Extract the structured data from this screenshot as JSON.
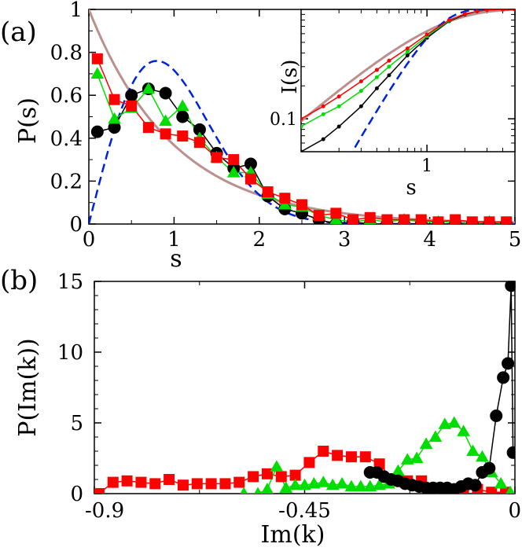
{
  "chart_data": [
    {
      "type": "line",
      "panel_label": "(a)",
      "xlabel": "s",
      "ylabel": "P(s)",
      "xlim": [
        0,
        5
      ],
      "ylim": [
        0,
        1
      ],
      "xticks": [
        "0",
        "1",
        "2",
        "3",
        "4",
        "5"
      ],
      "yticks": [
        "0",
        "0.2",
        "0.4",
        "0.6",
        "0.8",
        "1"
      ],
      "series": [
        {
          "name": "black-circles",
          "color": "#000000",
          "marker": "circle",
          "x": [
            0.1,
            0.3,
            0.5,
            0.7,
            0.9,
            1.1,
            1.3,
            1.5,
            1.7,
            1.9,
            2.1,
            2.3,
            2.5,
            2.7,
            2.9,
            3.1,
            3.3,
            3.5,
            3.7,
            3.9,
            4.1,
            4.3,
            4.5,
            4.7,
            4.9
          ],
          "y": [
            0.43,
            0.45,
            0.6,
            0.63,
            0.61,
            0.5,
            0.44,
            0.33,
            0.26,
            0.28,
            0.13,
            0.07,
            0.05,
            0.02,
            0.0,
            0.01,
            0.0,
            0.0,
            0.0,
            0.0,
            0.0,
            0.0,
            0.0,
            0.0,
            0.0
          ]
        },
        {
          "name": "green-triangles",
          "color": "#00dd00",
          "marker": "triangle",
          "x": [
            0.1,
            0.3,
            0.5,
            0.7,
            0.9,
            1.1,
            1.3,
            1.5,
            1.7,
            1.9,
            2.1,
            2.3,
            2.5,
            2.7,
            2.9,
            3.1,
            3.3,
            3.5,
            3.7,
            3.9,
            4.1,
            4.3,
            4.5,
            4.7,
            4.9
          ],
          "y": [
            0.7,
            0.49,
            0.54,
            0.63,
            0.48,
            0.55,
            0.4,
            0.31,
            0.24,
            0.24,
            0.14,
            0.09,
            0.08,
            0.04,
            0.02,
            0.01,
            0.02,
            0.01,
            0.02,
            0.01,
            0.01,
            0.01,
            0.0,
            0.01,
            0.0
          ]
        },
        {
          "name": "red-squares",
          "color": "#ff0000",
          "marker": "square",
          "x": [
            0.1,
            0.3,
            0.5,
            0.7,
            0.9,
            1.1,
            1.3,
            1.5,
            1.7,
            1.9,
            2.1,
            2.3,
            2.5,
            2.7,
            2.9,
            3.1,
            3.3,
            3.5,
            3.7,
            3.9,
            4.1,
            4.3,
            4.5,
            4.7,
            4.9
          ],
          "y": [
            0.77,
            0.58,
            0.55,
            0.45,
            0.42,
            0.41,
            0.38,
            0.31,
            0.3,
            0.21,
            0.15,
            0.12,
            0.09,
            0.04,
            0.05,
            0.02,
            0.03,
            0.02,
            0.02,
            0.02,
            0.01,
            0.02,
            0.01,
            0.01,
            0.01
          ]
        },
        {
          "name": "poisson",
          "color": "#bc8f8f",
          "style": "solid-thick",
          "formula": "exp(-s)"
        },
        {
          "name": "wigner-goe",
          "color": "#0022dd",
          "style": "dashed",
          "formula": "(pi/2) s exp(-pi s^2 / 4)"
        }
      ],
      "inset": {
        "xlabel": "s",
        "ylabel": "I(s)",
        "xscale": "log",
        "yscale": "log",
        "xlim": [
          0.1,
          5
        ],
        "ylim": [
          0.05,
          1
        ],
        "xticks": [
          "1"
        ],
        "yticks": [
          "0.1"
        ],
        "series": [
          {
            "name": "black",
            "color": "#000000",
            "x": [
              0.1,
              0.15,
              0.2,
              0.3,
              0.4,
              0.5,
              0.7,
              1.0,
              1.5,
              2.0,
              2.5,
              3.0,
              4.0,
              5.0
            ],
            "y": [
              0.05,
              0.065,
              0.085,
              0.13,
              0.19,
              0.25,
              0.38,
              0.55,
              0.78,
              0.9,
              0.96,
              0.99,
              1.0,
              1.0
            ]
          },
          {
            "name": "green",
            "color": "#00dd00",
            "x": [
              0.1,
              0.15,
              0.2,
              0.3,
              0.4,
              0.5,
              0.7,
              1.0,
              1.5,
              2.0,
              2.5,
              3.0,
              4.0,
              5.0
            ],
            "y": [
              0.085,
              0.11,
              0.13,
              0.18,
              0.24,
              0.3,
              0.41,
              0.57,
              0.79,
              0.91,
              0.96,
              0.99,
              1.0,
              1.0
            ]
          },
          {
            "name": "red",
            "color": "#ff0000",
            "x": [
              0.1,
              0.15,
              0.2,
              0.3,
              0.4,
              0.5,
              0.7,
              1.0,
              1.5,
              2.0,
              2.5,
              3.0,
              4.0,
              5.0
            ],
            "y": [
              0.1,
              0.13,
              0.16,
              0.22,
              0.28,
              0.34,
              0.44,
              0.59,
              0.8,
              0.91,
              0.96,
              0.99,
              1.0,
              1.0
            ]
          },
          {
            "name": "poisson-cumulative",
            "color": "#bc8f8f",
            "formula": "1 - exp(-s)"
          },
          {
            "name": "wigner-cumulative",
            "color": "#0022dd",
            "formula": "1 - exp(-pi s^2 / 4)"
          }
        ]
      }
    },
    {
      "type": "line",
      "panel_label": "(b)",
      "xlabel": "Im(k)",
      "ylabel": "P(Im(k))",
      "xlim": [
        -0.9,
        0
      ],
      "ylim": [
        0,
        15
      ],
      "xticks": [
        "-0.9",
        "-0.45",
        "0"
      ],
      "yticks": [
        "0",
        "5",
        "10",
        "15"
      ],
      "series": [
        {
          "name": "red-squares",
          "color": "#ff0000",
          "marker": "square",
          "x": [
            -0.89,
            -0.86,
            -0.83,
            -0.8,
            -0.77,
            -0.74,
            -0.71,
            -0.68,
            -0.65,
            -0.62,
            -0.59,
            -0.56,
            -0.53,
            -0.5,
            -0.47,
            -0.44,
            -0.41,
            -0.38,
            -0.35,
            -0.32,
            -0.29,
            -0.26,
            -0.23,
            -0.2,
            -0.17,
            -0.14,
            -0.11,
            -0.08,
            -0.05,
            -0.02
          ],
          "y": [
            0.0,
            0.8,
            0.9,
            0.8,
            0.7,
            1.0,
            0.6,
            0.7,
            0.7,
            0.7,
            0.8,
            1.2,
            1.4,
            1.2,
            1.3,
            2.2,
            3.0,
            2.7,
            2.6,
            2.6,
            2.1,
            0.9,
            0.9,
            0.9,
            0.4,
            0.3,
            0.3,
            0.3,
            0.1,
            0.1
          ]
        },
        {
          "name": "green-triangles",
          "color": "#00dd00",
          "marker": "triangle",
          "x": [
            -0.58,
            -0.55,
            -0.53,
            -0.51,
            -0.49,
            -0.47,
            -0.45,
            -0.43,
            -0.41,
            -0.39,
            -0.37,
            -0.35,
            -0.33,
            -0.31,
            -0.29,
            -0.27,
            -0.25,
            -0.23,
            -0.21,
            -0.19,
            -0.17,
            -0.15,
            -0.13,
            -0.11,
            -0.09,
            -0.07,
            -0.05,
            -0.03,
            -0.01
          ],
          "y": [
            0.0,
            0.0,
            0.3,
            1.9,
            0.4,
            0.6,
            0.6,
            0.7,
            0.8,
            0.6,
            0.7,
            0.5,
            0.5,
            0.5,
            0.6,
            0.7,
            1.6,
            2.4,
            2.5,
            3.5,
            4.0,
            4.9,
            5.0,
            4.4,
            3.0,
            2.6,
            1.5,
            0.7,
            0.1
          ]
        },
        {
          "name": "black-circles",
          "color": "#000000",
          "marker": "circle",
          "x": [
            -0.31,
            -0.295,
            -0.28,
            -0.265,
            -0.25,
            -0.235,
            -0.22,
            -0.205,
            -0.19,
            -0.175,
            -0.16,
            -0.145,
            -0.13,
            -0.115,
            -0.1,
            -0.085,
            -0.07,
            -0.055,
            -0.04,
            -0.025,
            -0.015,
            -0.008,
            -0.004
          ],
          "y": [
            1.5,
            1.5,
            1.2,
            1.0,
            0.9,
            0.7,
            0.6,
            0.5,
            0.4,
            0.4,
            0.4,
            0.4,
            0.3,
            0.5,
            0.7,
            0.6,
            1.5,
            1.8,
            5.5,
            8.2,
            9.2,
            14.7,
            2.9
          ]
        }
      ]
    }
  ]
}
